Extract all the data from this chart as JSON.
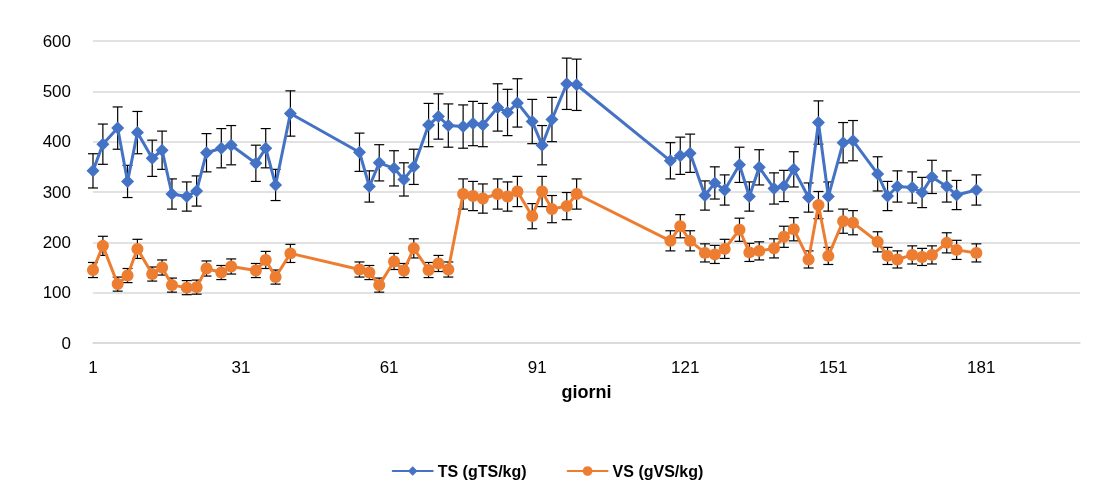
{
  "chart_data": {
    "type": "line",
    "xlabel": "giorni",
    "xlim": [
      1,
      201
    ],
    "xticks": [
      1,
      31,
      61,
      91,
      121,
      151,
      181
    ],
    "ylim": [
      0,
      600
    ],
    "yticks": [
      0,
      100,
      200,
      300,
      400,
      500,
      600
    ],
    "grid": "y",
    "legend": "bottom",
    "line_style": "solid",
    "x": [
      1,
      3,
      6,
      8,
      10,
      13,
      15,
      17,
      20,
      22,
      24,
      27,
      29,
      34,
      36,
      38,
      41,
      55,
      57,
      59,
      62,
      64,
      66,
      69,
      71,
      73,
      76,
      78,
      80,
      83,
      85,
      87,
      90,
      92,
      94,
      97,
      99,
      118,
      120,
      122,
      125,
      127,
      129,
      132,
      134,
      136,
      139,
      141,
      143,
      146,
      148,
      150,
      153,
      155,
      160,
      162,
      164,
      167,
      169,
      171,
      174,
      176,
      180
    ],
    "series": [
      {
        "name": "TS (gTS/kg)",
        "color": "#4472c4",
        "marker": "diamond",
        "values": [
          342,
          395,
          427,
          321,
          418,
          367,
          383,
          296,
          291,
          302,
          378,
          387,
          393,
          357,
          387,
          314,
          456,
          379,
          311,
          358,
          347,
          325,
          350,
          433,
          450,
          432,
          430,
          436,
          433,
          468,
          458,
          477,
          440,
          393,
          444,
          515,
          513,
          362,
          372,
          377,
          293,
          318,
          304,
          354,
          291,
          349,
          307,
          312,
          345,
          289,
          438,
          291,
          398,
          402,
          336,
          292,
          311,
          309,
          299,
          330,
          311,
          294,
          304
        ],
        "errors": [
          34,
          40,
          42,
          32,
          42,
          36,
          38,
          30,
          29,
          30,
          38,
          39,
          39,
          36,
          39,
          31,
          45,
          38,
          31,
          36,
          35,
          33,
          35,
          43,
          45,
          43,
          43,
          44,
          43,
          47,
          46,
          48,
          44,
          39,
          44,
          51,
          51,
          36,
          37,
          38,
          29,
          32,
          30,
          35,
          29,
          35,
          31,
          31,
          35,
          29,
          43,
          29,
          40,
          40,
          34,
          29,
          31,
          31,
          30,
          33,
          31,
          29,
          30
        ]
      },
      {
        "name": "VS (gVS/kg)",
        "color": "#ed7d31",
        "marker": "circle",
        "values": [
          145,
          193,
          117,
          134,
          187,
          137,
          150,
          115,
          110,
          111,
          148,
          140,
          152,
          144,
          165,
          131,
          178,
          146,
          140,
          115,
          162,
          144,
          188,
          145,
          158,
          146,
          296,
          292,
          287,
          296,
          291,
          301,
          252,
          301,
          266,
          272,
          296,
          203,
          232,
          203,
          179,
          176,
          187,
          225,
          180,
          183,
          188,
          211,
          226,
          166,
          274,
          173,
          242,
          239,
          201,
          173,
          166,
          175,
          171,
          175,
          199,
          185,
          179
        ],
        "errors": [
          15,
          19,
          14,
          14,
          19,
          14,
          15,
          14,
          14,
          14,
          15,
          14,
          15,
          14,
          17,
          14,
          18,
          15,
          14,
          14,
          16,
          14,
          19,
          15,
          16,
          15,
          30,
          29,
          29,
          30,
          29,
          30,
          25,
          30,
          27,
          27,
          30,
          20,
          23,
          20,
          18,
          18,
          19,
          23,
          18,
          18,
          19,
          21,
          23,
          17,
          27,
          17,
          24,
          24,
          20,
          17,
          17,
          18,
          17,
          18,
          20,
          19,
          18
        ]
      }
    ]
  }
}
